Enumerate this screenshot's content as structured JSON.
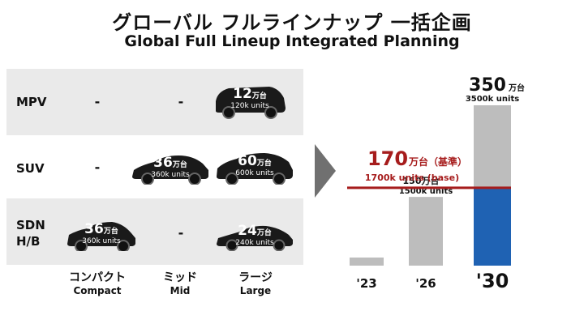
{
  "title": {
    "jp": "グローバル フルラインナップ 一括企画",
    "en": "Global Full Lineup Integrated Planning"
  },
  "matrix": {
    "rows": [
      {
        "label": "MPV",
        "compact": "-",
        "mid": "-",
        "large_big": "12",
        "large_unit": "万台",
        "large_units": "120k units"
      },
      {
        "label": "SUV",
        "compact": "-",
        "mid_big": "36",
        "mid_unit": "万台",
        "mid_units": "360k units",
        "large_big": "60",
        "large_unit": "万台",
        "large_units": "600k units"
      },
      {
        "label": "SDN\nH/B",
        "compact_big": "36",
        "compact_unit": "万台",
        "compact_units": "360k units",
        "mid": "-",
        "large_big": "24",
        "large_unit": "万台",
        "large_units": "240k units"
      }
    ],
    "columns": [
      {
        "jp": "コンパクト",
        "en": "Compact"
      },
      {
        "jp": "ミッド",
        "en": "Mid"
      },
      {
        "jp": "ラージ",
        "en": "Large"
      }
    ]
  },
  "chart_data": {
    "type": "bar",
    "categories": [
      "'23",
      "'26",
      "'30"
    ],
    "values": [
      15,
      150,
      350
    ],
    "unit_jp": "万台",
    "bar_labels": [
      {
        "big": "",
        "unit": "",
        "en": ""
      },
      {
        "big": "150",
        "unit": "万台",
        "en": "1500k units"
      },
      {
        "big": "350",
        "unit": "万台",
        "en": "3500k units"
      }
    ],
    "baseline": {
      "value": 170,
      "big": "170",
      "unit": "万台（基準）",
      "en": "1700k units (base)",
      "color": "#a61c1c"
    },
    "split_2030": {
      "base_value": 170,
      "above_color": "#bdbdbd",
      "below_color": "#1f62b3"
    },
    "ylim": [
      0,
      350
    ],
    "bar_color": "#bdbdbd"
  }
}
